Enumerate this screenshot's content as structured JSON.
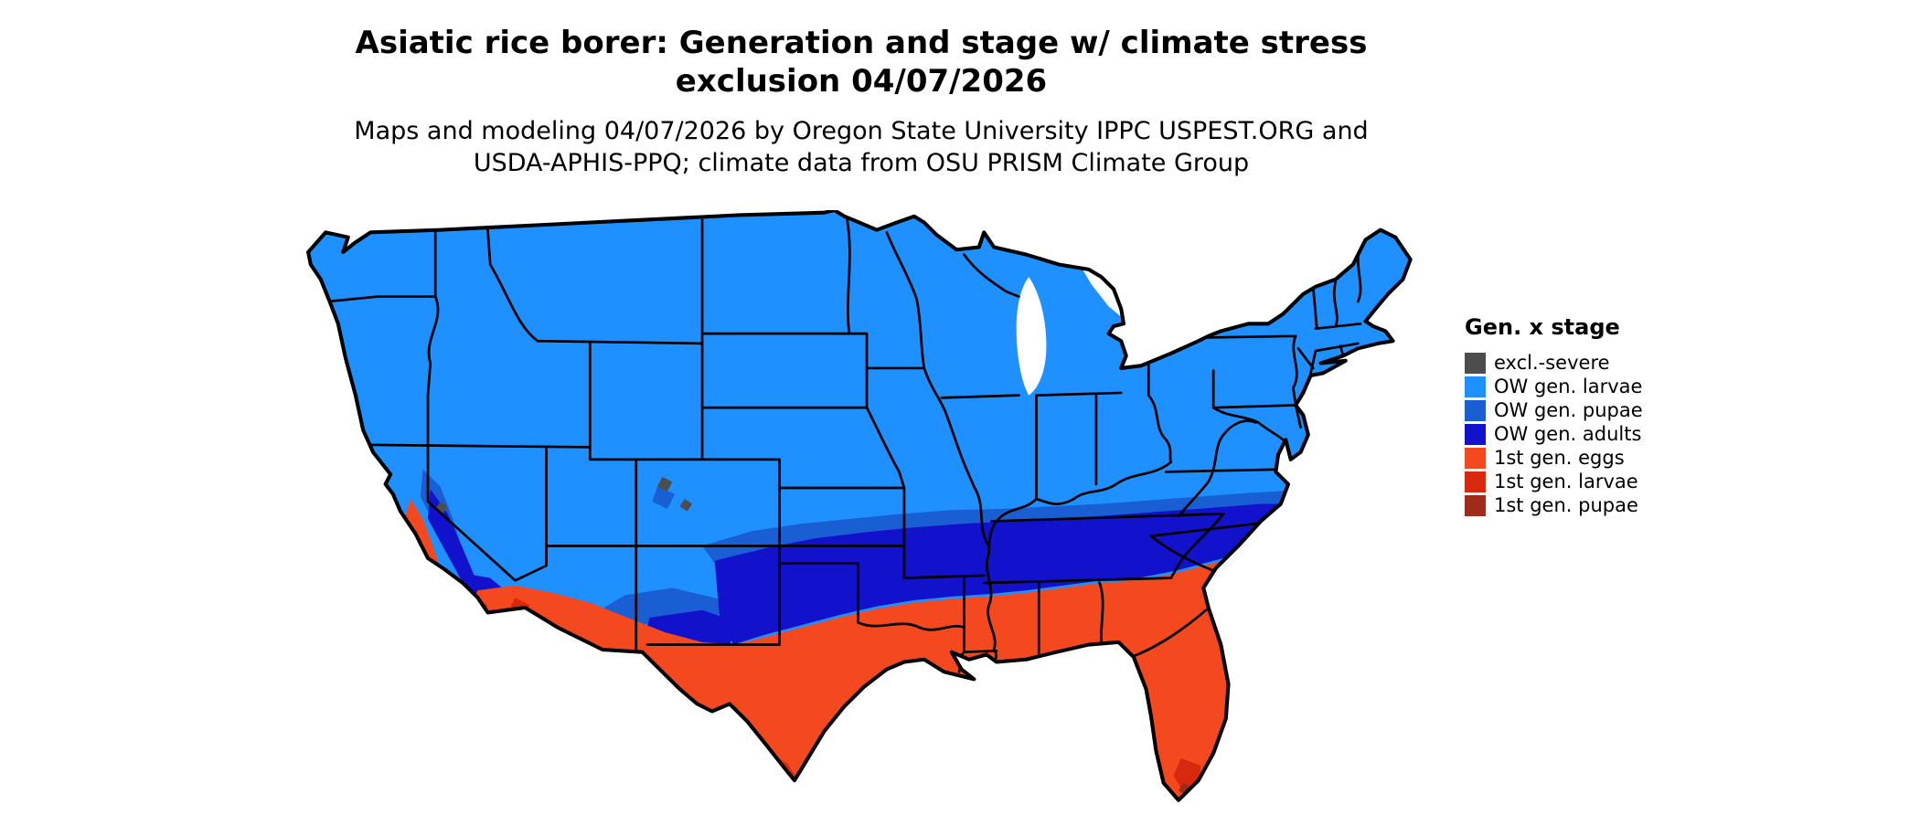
{
  "figure": {
    "title_line1": "Asiatic rice borer: Generation and stage w/ climate stress",
    "title_line2": "exclusion 04/07/2026",
    "subtitle_line1": "Maps and modeling 04/07/2026 by Oregon State University IPPC USPEST.ORG and",
    "subtitle_line2": "USDA-APHIS-PPQ; climate data from OSU PRISM Climate Group"
  },
  "legend": {
    "title": "Gen. x stage",
    "items": [
      {
        "label": "excl.-severe",
        "color": "#4d4d4d"
      },
      {
        "label": "OW gen. larvae",
        "color": "#1e90ff"
      },
      {
        "label": "OW gen. pupae",
        "color": "#1a5ed4"
      },
      {
        "label": "OW gen. adults",
        "color": "#1212cc"
      },
      {
        "label": "1st gen. eggs",
        "color": "#f4481e"
      },
      {
        "label": "1st gen. larvae",
        "color": "#d8290f"
      },
      {
        "label": "1st gen. pupae",
        "color": "#9e2b1b"
      }
    ]
  }
}
